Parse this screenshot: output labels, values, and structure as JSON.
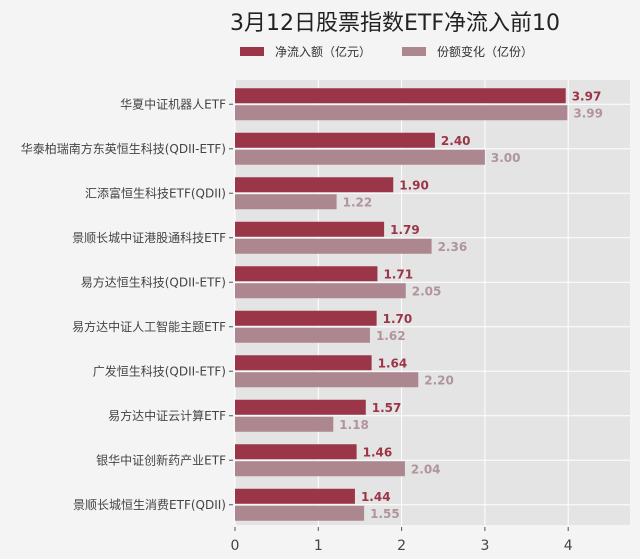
{
  "chart_data": {
    "type": "bar",
    "orientation": "horizontal",
    "title": "3月12日股票指数ETF净流入前10",
    "categories": [
      "华夏中证机器人ETF",
      "华泰柏瑞南方东英恒生科技(QDII-ETF)",
      "汇添富恒生科技ETF(QDII)",
      "景顺长城中证港股通科技ETF",
      "易方达恒生科技(QDII-ETF)",
      "易方达中证人工智能主题ETF",
      "广发恒生科技(QDII-ETF)",
      "易方达中证云计算ETF",
      "银华中证创新药产业ETF",
      "景顺长城恒生消费ETF(QDII)"
    ],
    "series": [
      {
        "name": "净流入额（亿元）",
        "color": "#9a3647",
        "values": [
          3.97,
          2.4,
          1.9,
          1.79,
          1.71,
          1.7,
          1.64,
          1.57,
          1.46,
          1.44
        ]
      },
      {
        "name": "份额变化（亿份）",
        "color": "#ad8790",
        "values": [
          3.99,
          3.0,
          1.22,
          2.36,
          2.05,
          1.62,
          2.2,
          1.18,
          2.04,
          1.55
        ]
      }
    ],
    "xticks": [
      "0",
      "1",
      "2",
      "3",
      "4"
    ],
    "xlim": [
      0,
      4.74
    ],
    "grid": true,
    "legend": "top"
  }
}
